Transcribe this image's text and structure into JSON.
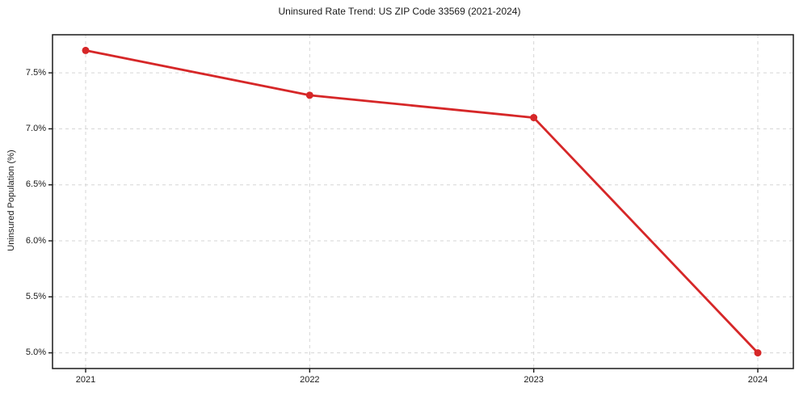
{
  "title": "Uninsured Rate Trend: US ZIP Code 33569 (2021-2024)",
  "chart_data": {
    "type": "line",
    "title": "Uninsured Rate Trend: US ZIP Code 33569 (2021-2024)",
    "categories": [
      "2021",
      "2022",
      "2023",
      "2024"
    ],
    "values": [
      7.7,
      7.3,
      7.1,
      5.0
    ],
    "xlabel": "",
    "ylabel": "Uninsured Population (%)",
    "ylim": [
      4.86,
      7.84
    ],
    "yticks": [
      5.0,
      5.5,
      6.0,
      6.5,
      7.0,
      7.5
    ],
    "ytick_labels": [
      "5.0%",
      "5.5%",
      "6.0%",
      "6.5%",
      "7.0%",
      "7.5%"
    ],
    "grid": true,
    "grid_style": "dashed",
    "legend": false,
    "marker": "circle",
    "line_color": "#d62728"
  },
  "colors": {
    "line": "#d62728",
    "grid": "#d5d5d5",
    "axis": "#1a1a1a",
    "text": "#1a1a1a",
    "background": "#ffffff"
  }
}
